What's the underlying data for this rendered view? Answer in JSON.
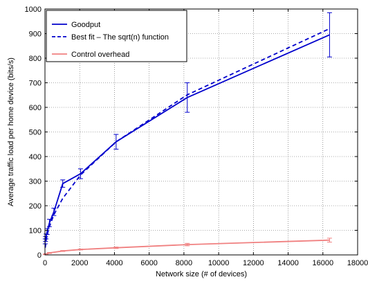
{
  "chart_data": {
    "type": "line",
    "xlabel": "Network size (# of devices)",
    "ylabel": "Average traffic load per home device (bits/s)",
    "xlim": [
      0,
      18000
    ],
    "ylim": [
      0,
      1000
    ],
    "xticks": [
      0,
      2000,
      4000,
      6000,
      8000,
      10000,
      12000,
      14000,
      16000,
      18000
    ],
    "yticks": [
      0,
      100,
      200,
      300,
      400,
      500,
      600,
      700,
      800,
      900,
      1000
    ],
    "grid": true,
    "legend_position": "top-left",
    "series": [
      {
        "name": "Goodput",
        "color": "#0000cc",
        "style": "solid",
        "x": [
          16,
          32,
          64,
          128,
          256,
          512,
          1024,
          2048,
          4096,
          8192,
          16384
        ],
        "y": [
          55,
          65,
          75,
          95,
          130,
          175,
          290,
          330,
          460,
          640,
          895
        ],
        "err": [
          10,
          10,
          10,
          12,
          15,
          15,
          15,
          20,
          30,
          60,
          90
        ]
      },
      {
        "name": "Best fit – The sqrt(n) function",
        "color": "#0000cc",
        "style": "dashed",
        "x": [
          16,
          64,
          128,
          256,
          512,
          1024,
          2048,
          4096,
          8192,
          16384
        ],
        "y": [
          29,
          58,
          82,
          115,
          163,
          230,
          325,
          460,
          651,
          920
        ]
      },
      {
        "name": "Control overhead",
        "color": "#f08080",
        "style": "solid",
        "x": [
          16,
          64,
          256,
          1024,
          2048,
          4096,
          8192,
          16384
        ],
        "y": [
          2,
          4,
          8,
          16,
          22,
          29,
          42,
          60
        ],
        "err": [
          1,
          1,
          2,
          2,
          2,
          3,
          5,
          8
        ]
      }
    ]
  }
}
